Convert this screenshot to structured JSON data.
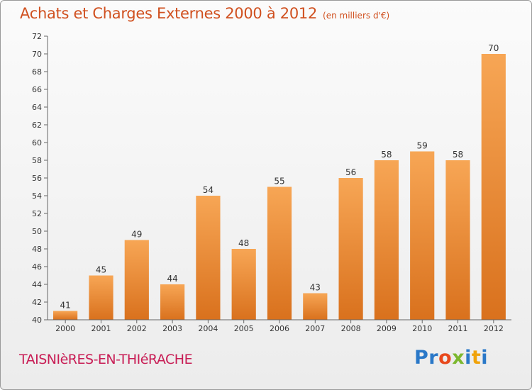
{
  "title": "Achats et Charges Externes 2000 à 2012",
  "subtitle": "(en milliers d'€)",
  "commune": "TAISNIèRES-EN-THIéRACHE",
  "brand": {
    "letters": [
      {
        "char": "P",
        "color": "#2a78c8"
      },
      {
        "char": "r",
        "color": "#2a78c8"
      },
      {
        "char": "o",
        "color": "#e8491d"
      },
      {
        "char": "x",
        "color": "#7cb82f"
      },
      {
        "char": "i",
        "color": "#2a78c8"
      },
      {
        "char": "t",
        "color": "#f0a30a"
      },
      {
        "char": "i",
        "color": "#2a78c8"
      }
    ]
  },
  "colors": {
    "title": "#d0501f",
    "commune": "#c81d55",
    "bar_top": "#f7a655",
    "bar_bottom": "#d9711d"
  },
  "chart_data": {
    "type": "bar",
    "categories": [
      "2000",
      "2001",
      "2002",
      "2003",
      "2004",
      "2005",
      "2006",
      "2007",
      "2008",
      "2009",
      "2010",
      "2011",
      "2012"
    ],
    "values": [
      41,
      45,
      49,
      44,
      54,
      48,
      55,
      43,
      56,
      58,
      59,
      58,
      70
    ],
    "ylim": [
      40,
      72
    ],
    "yticks": [
      40,
      42,
      44,
      46,
      48,
      50,
      52,
      54,
      56,
      58,
      60,
      62,
      64,
      66,
      68,
      70,
      72
    ],
    "grid": false,
    "xlabel": "",
    "ylabel": ""
  }
}
